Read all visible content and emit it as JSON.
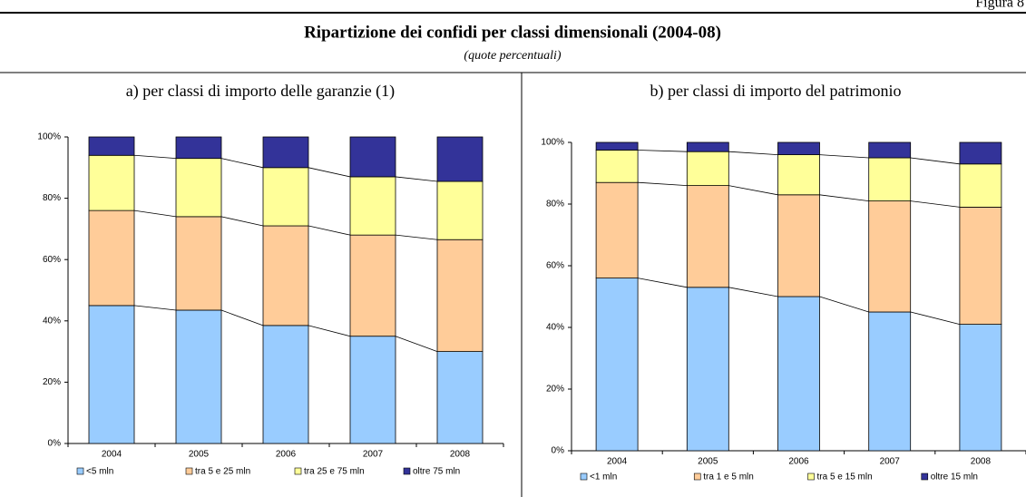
{
  "figure_label": "Figura 8",
  "title": "Ripartizione dei confidi per classi dimensionali (2004-08)",
  "subtitle": "(quote percentuali)",
  "chart_data": [
    {
      "type": "stacked_bar",
      "title": "a) per classi di importo delle garanzie (1)",
      "categories": [
        "2004",
        "2005",
        "2006",
        "2007",
        "2008"
      ],
      "ylim": [
        0,
        100
      ],
      "yticks": [
        {
          "value": 0,
          "label": "0%"
        },
        {
          "value": 20,
          "label": "20%"
        },
        {
          "value": 40,
          "label": "40%"
        },
        {
          "value": 60,
          "label": "60%"
        },
        {
          "value": 80,
          "label": "80%"
        },
        {
          "value": 100,
          "label": "100%"
        }
      ],
      "series_lines": true,
      "series": [
        {
          "name": "<5 mln",
          "color": "#99ccff",
          "values": [
            45,
            43.5,
            38.5,
            35,
            30
          ]
        },
        {
          "name": "tra 5 e 25 mln",
          "color": "#ffcc99",
          "values": [
            31,
            30.5,
            32.5,
            33,
            36.5
          ]
        },
        {
          "name": "tra 25 e 75 mln",
          "color": "#ffff99",
          "values": [
            18,
            19,
            19,
            19,
            19
          ]
        },
        {
          "name": "oltre 75 mln",
          "color": "#333399",
          "values": [
            6,
            7,
            10,
            13,
            14.5
          ]
        }
      ]
    },
    {
      "type": "stacked_bar",
      "title": "b) per classi di importo del patrimonio",
      "categories": [
        "2004",
        "2005",
        "2006",
        "2007",
        "2008"
      ],
      "ylim": [
        0,
        100
      ],
      "yticks": [
        {
          "value": 0,
          "label": "0%"
        },
        {
          "value": 20,
          "label": "20%"
        },
        {
          "value": 40,
          "label": "40%"
        },
        {
          "value": 60,
          "label": "60%"
        },
        {
          "value": 80,
          "label": "80%"
        },
        {
          "value": 100,
          "label": "100%"
        }
      ],
      "series_lines": true,
      "series": [
        {
          "name": "<1 mln",
          "color": "#99ccff",
          "values": [
            56,
            53,
            50,
            45,
            41
          ]
        },
        {
          "name": "tra 1 e 5 mln",
          "color": "#ffcc99",
          "values": [
            31,
            33,
            33,
            36,
            38
          ]
        },
        {
          "name": "tra 5 e 15 mln",
          "color": "#ffff99",
          "values": [
            10.5,
            11,
            13,
            14,
            14
          ]
        },
        {
          "name": "oltre 15 mln",
          "color": "#333399",
          "values": [
            2.5,
            3,
            4,
            5,
            7
          ]
        }
      ]
    }
  ]
}
